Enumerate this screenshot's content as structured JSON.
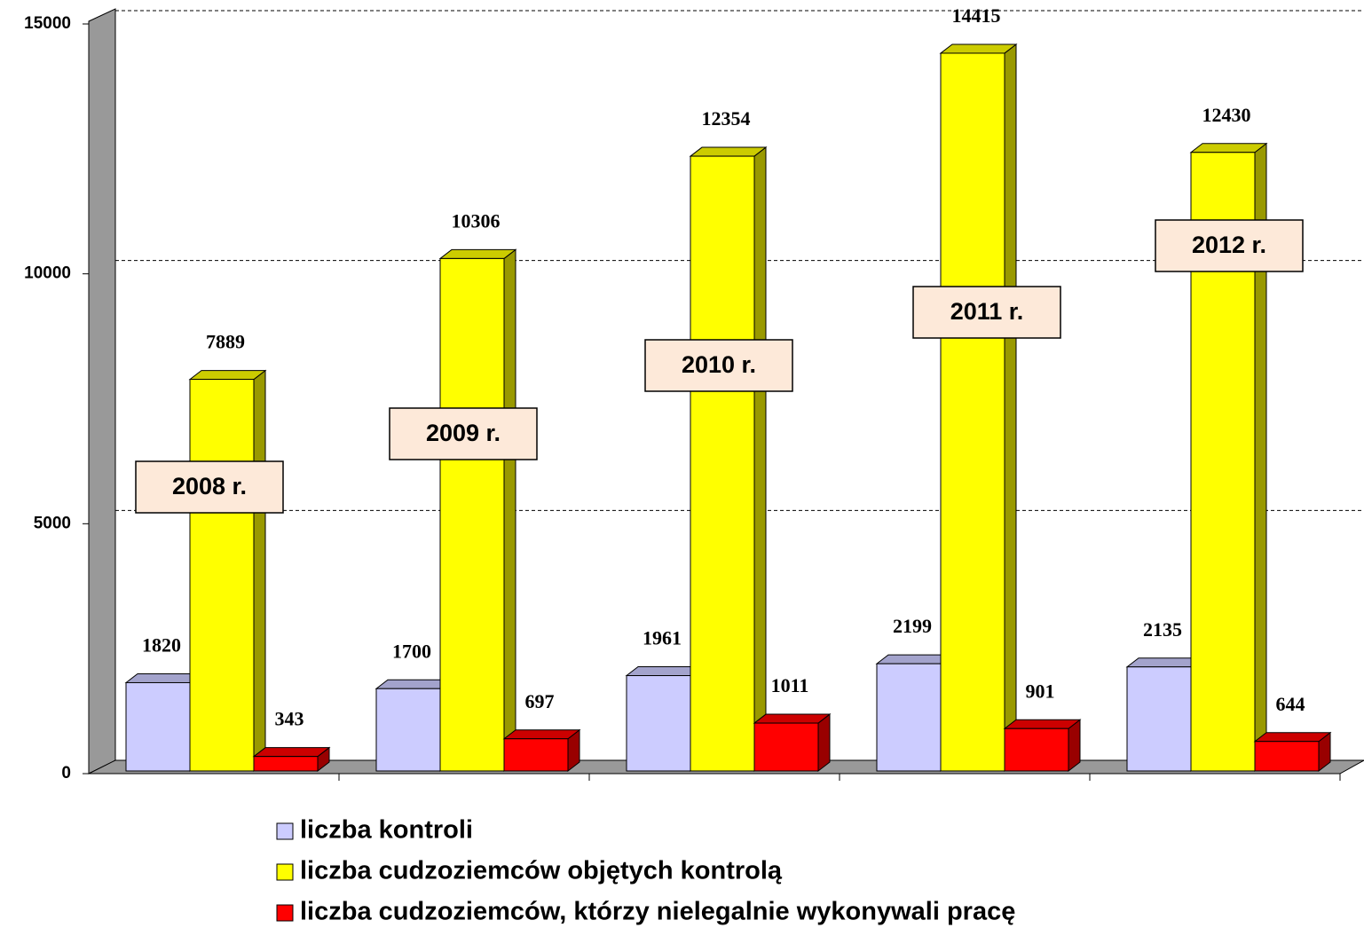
{
  "chart_data": {
    "type": "bar3d",
    "categories": [
      "2008 r.",
      "2009 r.",
      "2010 r.",
      "2011 r.",
      "2012 r."
    ],
    "series": [
      {
        "name": "liczba kontroli",
        "color": "#ccccff",
        "values": [
          1820,
          1700,
          1961,
          2199,
          2135
        ]
      },
      {
        "name": "liczba cudzoziemców objętych kontrolą",
        "color": "#ffff00",
        "values": [
          7889,
          10306,
          12354,
          14415,
          12430
        ]
      },
      {
        "name": "liczba cudzoziemców, którzy nielegalnie wykonywali pracę",
        "color": "#ff0000",
        "values": [
          343,
          697,
          1011,
          901,
          644
        ]
      }
    ],
    "ylim": [
      0,
      15000
    ],
    "yticks": [
      0,
      5000,
      10000,
      15000
    ],
    "grid": true
  }
}
